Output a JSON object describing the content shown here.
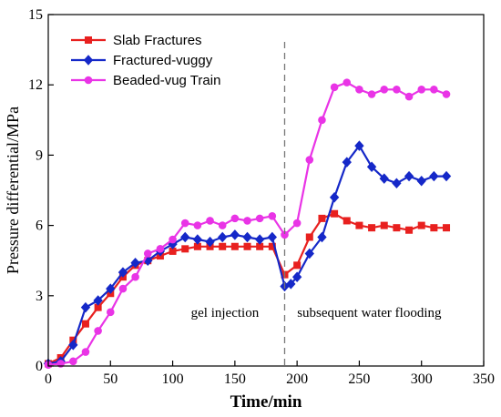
{
  "chart_data": {
    "type": "line",
    "xlabel": "Time/min",
    "ylabel": "Pressure differential/MPa",
    "xlim": [
      0,
      350
    ],
    "ylim": [
      0,
      15
    ],
    "xticks": [
      0,
      50,
      100,
      150,
      200,
      250,
      300,
      350
    ],
    "yticks": [
      0,
      3,
      6,
      9,
      12,
      15
    ],
    "grid": false,
    "legend": "top-left",
    "divider_x": 190,
    "annotations": [
      {
        "text": "gel injection",
        "x": 142,
        "y": 2.3
      },
      {
        "text": "subsequent water flooding",
        "x": 258,
        "y": 2.3
      }
    ],
    "series": [
      {
        "name": "Slab Fractures",
        "color": "#e8201f",
        "marker": "square",
        "x": [
          0,
          10,
          20,
          30,
          40,
          50,
          60,
          70,
          80,
          90,
          100,
          110,
          120,
          130,
          140,
          150,
          160,
          170,
          180,
          190,
          200,
          210,
          220,
          230,
          240,
          250,
          260,
          270,
          280,
          290,
          300,
          310,
          320
        ],
        "y": [
          0.1,
          0.35,
          1.1,
          1.8,
          2.5,
          3.1,
          3.8,
          4.3,
          4.5,
          4.7,
          4.9,
          5.0,
          5.1,
          5.1,
          5.1,
          5.1,
          5.1,
          5.1,
          5.1,
          3.9,
          4.3,
          5.5,
          6.3,
          6.5,
          6.2,
          6.0,
          5.9,
          6.0,
          5.9,
          5.8,
          6.0,
          5.9,
          5.9
        ]
      },
      {
        "name": "Fractured-vuggy",
        "color": "#1528c8",
        "marker": "diamond",
        "x": [
          0,
          10,
          20,
          30,
          40,
          50,
          60,
          70,
          80,
          90,
          100,
          110,
          120,
          130,
          140,
          150,
          160,
          170,
          180,
          190,
          195,
          200,
          210,
          220,
          230,
          240,
          250,
          260,
          270,
          280,
          290,
          300,
          310,
          320
        ],
        "y": [
          0.1,
          0.2,
          0.9,
          2.5,
          2.8,
          3.3,
          4.0,
          4.4,
          4.5,
          4.9,
          5.2,
          5.5,
          5.4,
          5.3,
          5.5,
          5.6,
          5.5,
          5.4,
          5.5,
          3.4,
          3.5,
          3.8,
          4.8,
          5.5,
          7.2,
          8.7,
          9.4,
          8.5,
          8.0,
          7.8,
          8.1,
          7.9,
          8.1,
          8.1
        ]
      },
      {
        "name": "Beaded-vug Train",
        "color": "#e934e6",
        "marker": "circle",
        "x": [
          0,
          10,
          20,
          30,
          40,
          50,
          60,
          70,
          80,
          90,
          100,
          110,
          120,
          130,
          140,
          150,
          160,
          170,
          180,
          190,
          200,
          210,
          220,
          230,
          240,
          250,
          260,
          270,
          280,
          290,
          300,
          310,
          320
        ],
        "y": [
          0.05,
          0.1,
          0.2,
          0.6,
          1.5,
          2.3,
          3.3,
          3.8,
          4.8,
          5.0,
          5.4,
          6.1,
          6.0,
          6.2,
          6.0,
          6.3,
          6.2,
          6.3,
          6.4,
          5.6,
          6.1,
          8.8,
          10.5,
          11.9,
          12.1,
          11.8,
          11.6,
          11.8,
          11.8,
          11.5,
          11.8,
          11.8,
          11.6
        ]
      }
    ]
  }
}
